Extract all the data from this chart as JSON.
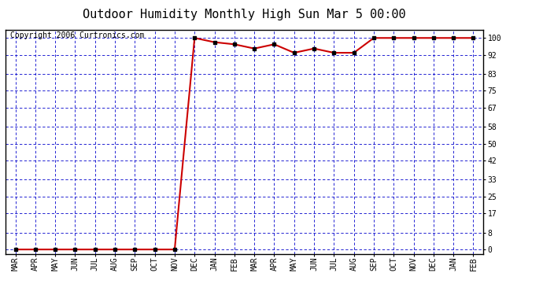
{
  "title": "Outdoor Humidity Monthly High Sun Mar 5 00:00",
  "copyright": "Copyright 2006 Curtronics.com",
  "x_labels": [
    "MAR",
    "APR",
    "MAY",
    "JUN",
    "JUL",
    "AUG",
    "SEP",
    "OCT",
    "NOV",
    "DEC",
    "JAN",
    "FEB",
    "MAR",
    "APR",
    "MAY",
    "JUN",
    "JUL",
    "AUG",
    "SEP",
    "OCT",
    "NOV",
    "DEC",
    "JAN",
    "FEB"
  ],
  "y_values": [
    0,
    0,
    0,
    0,
    0,
    0,
    0,
    0,
    0,
    100,
    98,
    97,
    95,
    97,
    93,
    95,
    93,
    93,
    100,
    100,
    100,
    100,
    100,
    100
  ],
  "yticks": [
    0,
    8,
    17,
    25,
    33,
    42,
    50,
    58,
    67,
    75,
    83,
    92,
    100
  ],
  "ylim": [
    -2,
    104
  ],
  "bg_color": "#ffffff",
  "grid_color": "#0000cc",
  "line_color": "#cc0000",
  "marker_color": "#000000",
  "title_fontsize": 11,
  "copyright_fontsize": 7,
  "tick_fontsize": 7
}
